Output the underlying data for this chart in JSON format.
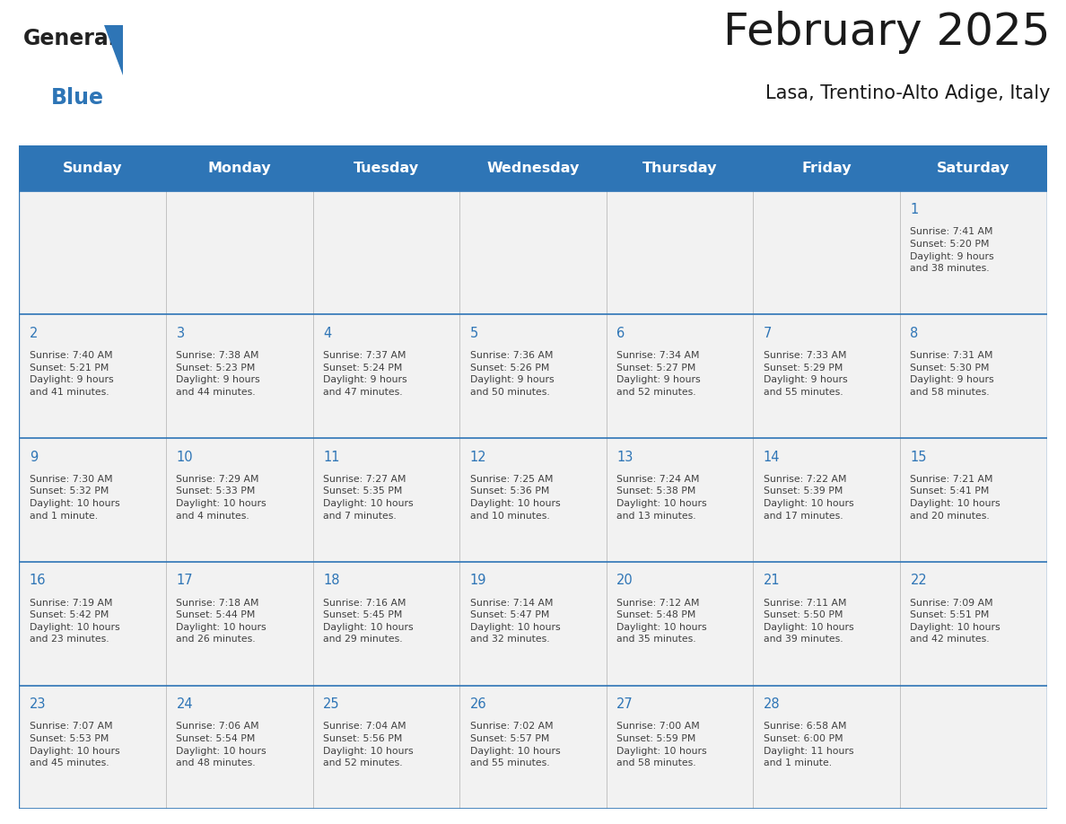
{
  "title": "February 2025",
  "subtitle": "Lasa, Trentino-Alto Adige, Italy",
  "header_bg": "#2E75B6",
  "header_text_color": "#FFFFFF",
  "cell_bg": "#F2F2F2",
  "day_number_color": "#2E75B6",
  "cell_text_color": "#404040",
  "border_color": "#2E75B6",
  "grid_color": "#BBBBBB",
  "days_of_week": [
    "Sunday",
    "Monday",
    "Tuesday",
    "Wednesday",
    "Thursday",
    "Friday",
    "Saturday"
  ],
  "weeks": [
    [
      {
        "day": "",
        "info": ""
      },
      {
        "day": "",
        "info": ""
      },
      {
        "day": "",
        "info": ""
      },
      {
        "day": "",
        "info": ""
      },
      {
        "day": "",
        "info": ""
      },
      {
        "day": "",
        "info": ""
      },
      {
        "day": "1",
        "info": "Sunrise: 7:41 AM\nSunset: 5:20 PM\nDaylight: 9 hours\nand 38 minutes."
      }
    ],
    [
      {
        "day": "2",
        "info": "Sunrise: 7:40 AM\nSunset: 5:21 PM\nDaylight: 9 hours\nand 41 minutes."
      },
      {
        "day": "3",
        "info": "Sunrise: 7:38 AM\nSunset: 5:23 PM\nDaylight: 9 hours\nand 44 minutes."
      },
      {
        "day": "4",
        "info": "Sunrise: 7:37 AM\nSunset: 5:24 PM\nDaylight: 9 hours\nand 47 minutes."
      },
      {
        "day": "5",
        "info": "Sunrise: 7:36 AM\nSunset: 5:26 PM\nDaylight: 9 hours\nand 50 minutes."
      },
      {
        "day": "6",
        "info": "Sunrise: 7:34 AM\nSunset: 5:27 PM\nDaylight: 9 hours\nand 52 minutes."
      },
      {
        "day": "7",
        "info": "Sunrise: 7:33 AM\nSunset: 5:29 PM\nDaylight: 9 hours\nand 55 minutes."
      },
      {
        "day": "8",
        "info": "Sunrise: 7:31 AM\nSunset: 5:30 PM\nDaylight: 9 hours\nand 58 minutes."
      }
    ],
    [
      {
        "day": "9",
        "info": "Sunrise: 7:30 AM\nSunset: 5:32 PM\nDaylight: 10 hours\nand 1 minute."
      },
      {
        "day": "10",
        "info": "Sunrise: 7:29 AM\nSunset: 5:33 PM\nDaylight: 10 hours\nand 4 minutes."
      },
      {
        "day": "11",
        "info": "Sunrise: 7:27 AM\nSunset: 5:35 PM\nDaylight: 10 hours\nand 7 minutes."
      },
      {
        "day": "12",
        "info": "Sunrise: 7:25 AM\nSunset: 5:36 PM\nDaylight: 10 hours\nand 10 minutes."
      },
      {
        "day": "13",
        "info": "Sunrise: 7:24 AM\nSunset: 5:38 PM\nDaylight: 10 hours\nand 13 minutes."
      },
      {
        "day": "14",
        "info": "Sunrise: 7:22 AM\nSunset: 5:39 PM\nDaylight: 10 hours\nand 17 minutes."
      },
      {
        "day": "15",
        "info": "Sunrise: 7:21 AM\nSunset: 5:41 PM\nDaylight: 10 hours\nand 20 minutes."
      }
    ],
    [
      {
        "day": "16",
        "info": "Sunrise: 7:19 AM\nSunset: 5:42 PM\nDaylight: 10 hours\nand 23 minutes."
      },
      {
        "day": "17",
        "info": "Sunrise: 7:18 AM\nSunset: 5:44 PM\nDaylight: 10 hours\nand 26 minutes."
      },
      {
        "day": "18",
        "info": "Sunrise: 7:16 AM\nSunset: 5:45 PM\nDaylight: 10 hours\nand 29 minutes."
      },
      {
        "day": "19",
        "info": "Sunrise: 7:14 AM\nSunset: 5:47 PM\nDaylight: 10 hours\nand 32 minutes."
      },
      {
        "day": "20",
        "info": "Sunrise: 7:12 AM\nSunset: 5:48 PM\nDaylight: 10 hours\nand 35 minutes."
      },
      {
        "day": "21",
        "info": "Sunrise: 7:11 AM\nSunset: 5:50 PM\nDaylight: 10 hours\nand 39 minutes."
      },
      {
        "day": "22",
        "info": "Sunrise: 7:09 AM\nSunset: 5:51 PM\nDaylight: 10 hours\nand 42 minutes."
      }
    ],
    [
      {
        "day": "23",
        "info": "Sunrise: 7:07 AM\nSunset: 5:53 PM\nDaylight: 10 hours\nand 45 minutes."
      },
      {
        "day": "24",
        "info": "Sunrise: 7:06 AM\nSunset: 5:54 PM\nDaylight: 10 hours\nand 48 minutes."
      },
      {
        "day": "25",
        "info": "Sunrise: 7:04 AM\nSunset: 5:56 PM\nDaylight: 10 hours\nand 52 minutes."
      },
      {
        "day": "26",
        "info": "Sunrise: 7:02 AM\nSunset: 5:57 PM\nDaylight: 10 hours\nand 55 minutes."
      },
      {
        "day": "27",
        "info": "Sunrise: 7:00 AM\nSunset: 5:59 PM\nDaylight: 10 hours\nand 58 minutes."
      },
      {
        "day": "28",
        "info": "Sunrise: 6:58 AM\nSunset: 6:00 PM\nDaylight: 11 hours\nand 1 minute."
      },
      {
        "day": "",
        "info": ""
      }
    ]
  ]
}
